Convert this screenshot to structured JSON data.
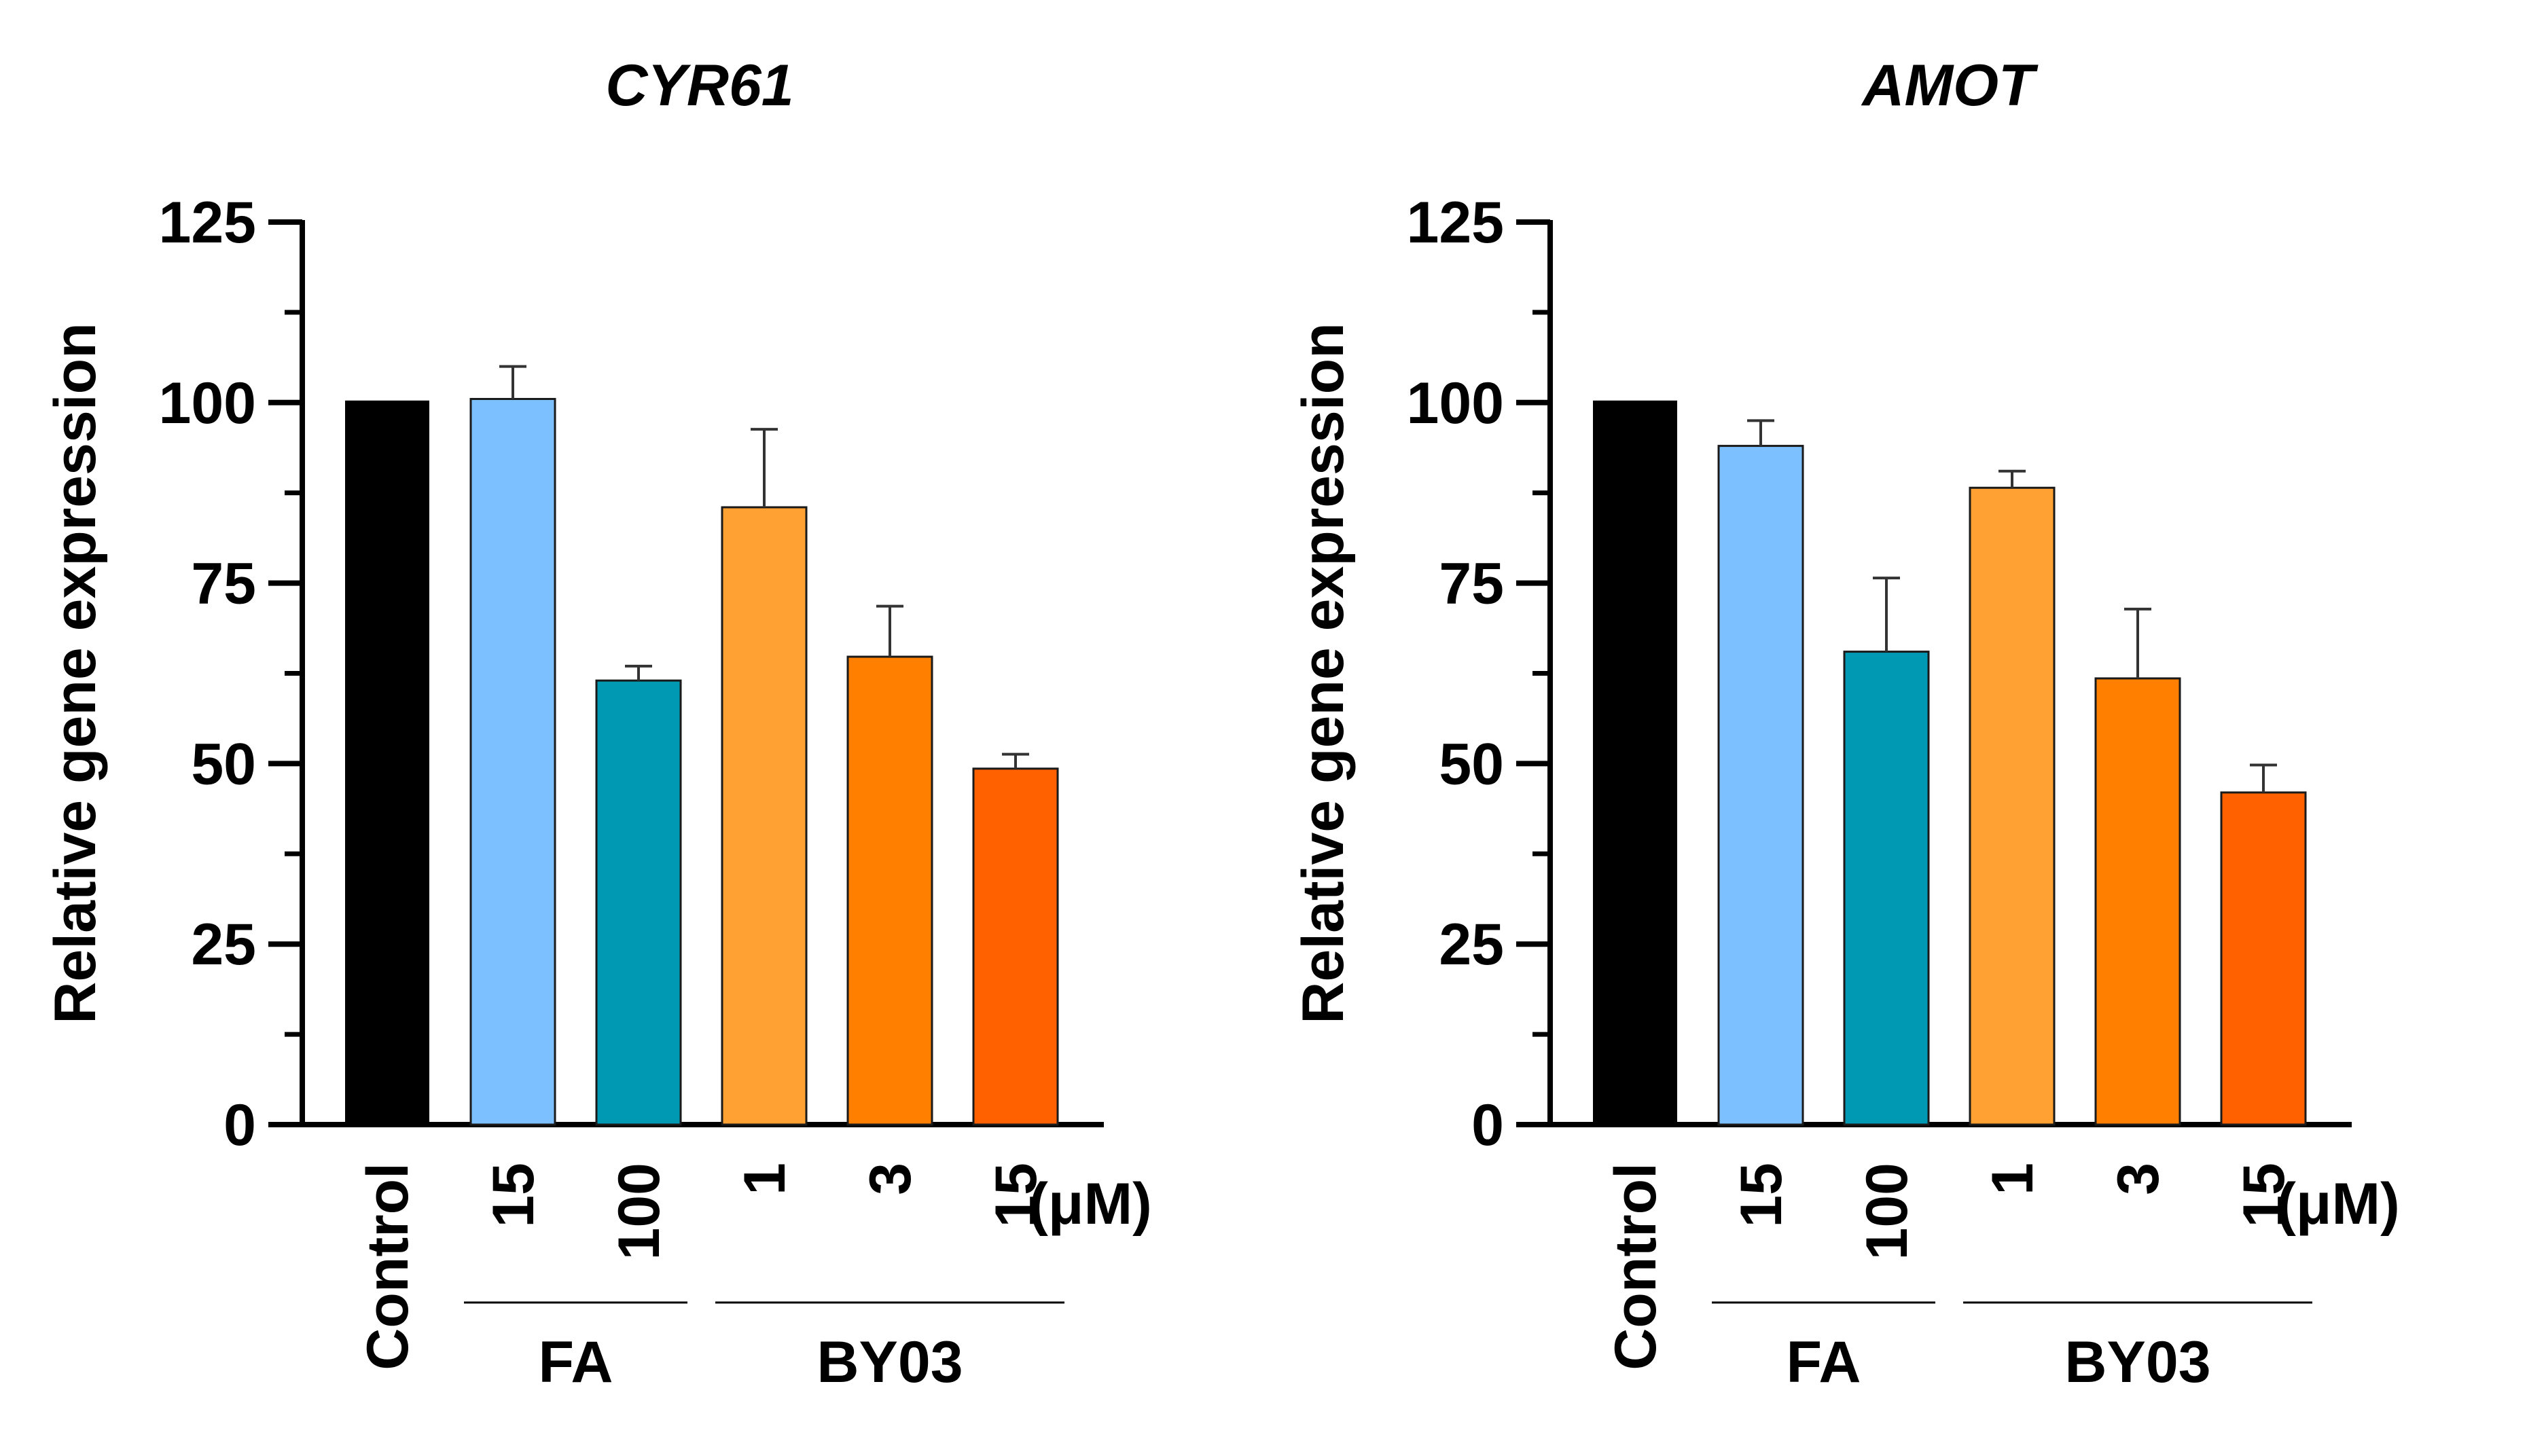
{
  "chart_data": [
    {
      "type": "bar",
      "title": "CYR61",
      "ylabel": "Relative gene expression",
      "ylim": [
        0,
        125
      ],
      "yticks": [
        0,
        25,
        50,
        75,
        100,
        125
      ],
      "categories": [
        "Control",
        "15",
        "100",
        "1",
        "3",
        "15"
      ],
      "unit_label": "(μM)",
      "values": [
        100,
        100.5,
        61.5,
        85.5,
        64.8,
        49.3
      ],
      "errors": [
        0,
        4.5,
        2.0,
        10.8,
        7.0,
        2.0
      ],
      "colors": [
        "#000000",
        "#7dc0ff",
        "#0099b3",
        "#ffa133",
        "#ff8000",
        "#ff6000"
      ],
      "groups": [
        {
          "label": "FA",
          "members": [
            1,
            2
          ]
        },
        {
          "label": "BY03",
          "members": [
            3,
            4,
            5
          ]
        }
      ],
      "grid": false
    },
    {
      "type": "bar",
      "title": "AMOT",
      "ylabel": "Relative gene expression",
      "ylim": [
        0,
        125
      ],
      "yticks": [
        0,
        25,
        50,
        75,
        100,
        125
      ],
      "categories": [
        "Control",
        "15",
        "100",
        "1",
        "3",
        "15"
      ],
      "unit_label": "(μM)",
      "values": [
        100,
        94,
        65.5,
        88.2,
        61.8,
        46
      ],
      "errors": [
        0,
        3.5,
        10.2,
        2.3,
        9.6,
        3.8
      ],
      "colors": [
        "#000000",
        "#7dc0ff",
        "#0099b3",
        "#ffa133",
        "#ff8000",
        "#ff6000"
      ],
      "groups": [
        {
          "label": "FA",
          "members": [
            1,
            2
          ]
        },
        {
          "label": "BY03",
          "members": [
            3,
            4,
            5
          ]
        }
      ],
      "grid": false
    }
  ]
}
